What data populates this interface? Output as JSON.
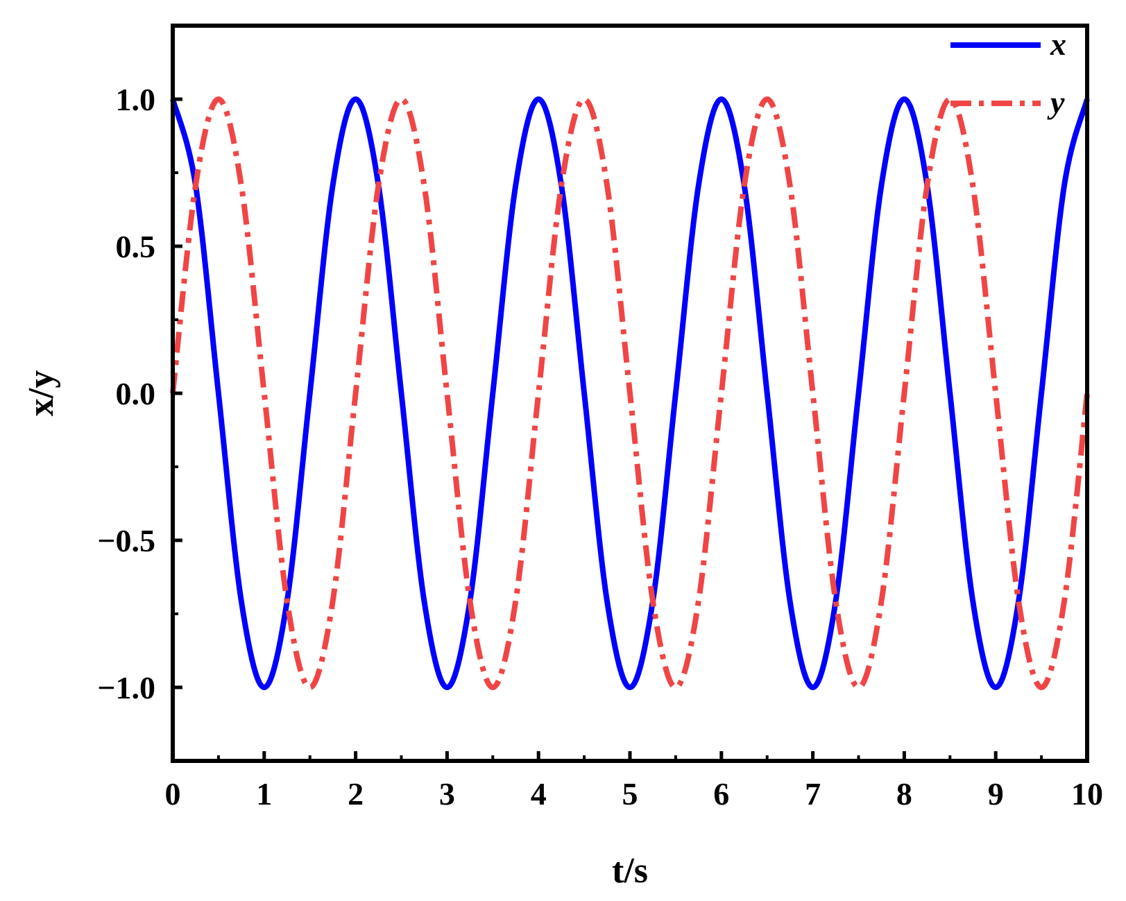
{
  "chart_data": {
    "type": "line",
    "xlabel": "t/s",
    "ylabel": "x/y",
    "xlim": [
      0,
      10
    ],
    "ylim": [
      -1.25,
      1.25
    ],
    "x_ticks": [
      0,
      1,
      2,
      3,
      4,
      5,
      6,
      7,
      8,
      9,
      10
    ],
    "x_tick_labels": [
      "0",
      "1",
      "2",
      "3",
      "4",
      "5",
      "6",
      "7",
      "8",
      "9",
      "10"
    ],
    "y_ticks": [
      -1.0,
      -0.5,
      0.0,
      0.5,
      1.0
    ],
    "y_tick_labels": [
      "−1.0",
      "−0.5",
      "0.0",
      "0.5",
      "1.0"
    ],
    "grid": false,
    "legend_position": "top-right",
    "series": [
      {
        "name": "x",
        "style": "solid",
        "color": "#0000ff",
        "x": [
          0,
          0.25,
          0.5,
          0.75,
          1,
          1.25,
          1.5,
          1.75,
          2,
          2.25,
          2.5,
          2.75,
          3,
          3.25,
          3.5,
          3.75,
          4,
          4.25,
          4.5,
          4.75,
          5,
          5.25,
          5.5,
          5.75,
          6,
          6.25,
          6.5,
          6.75,
          7,
          7.25,
          7.5,
          7.75,
          8,
          8.25,
          8.5,
          8.75,
          9,
          9.25,
          9.5,
          9.75,
          10
        ],
        "values": [
          1,
          0.707,
          0,
          -0.707,
          -1,
          -0.707,
          0,
          0.707,
          1,
          0.707,
          0,
          -0.707,
          -1,
          -0.707,
          0,
          0.707,
          1,
          0.707,
          0,
          -0.707,
          -1,
          -0.707,
          0,
          0.707,
          1,
          0.707,
          0,
          -0.707,
          -1,
          -0.707,
          0,
          0.707,
          1,
          0.707,
          0,
          -0.707,
          -1,
          -0.707,
          0,
          0.707,
          1
        ]
      },
      {
        "name": "y",
        "style": "dash-dot",
        "color": "#f04545",
        "x": [
          0,
          0.25,
          0.5,
          0.75,
          1,
          1.25,
          1.5,
          1.75,
          2,
          2.25,
          2.5,
          2.75,
          3,
          3.25,
          3.5,
          3.75,
          4,
          4.25,
          4.5,
          4.75,
          5,
          5.25,
          5.5,
          5.75,
          6,
          6.25,
          6.5,
          6.75,
          7,
          7.25,
          7.5,
          7.75,
          8,
          8.25,
          8.5,
          8.75,
          9,
          9.25,
          9.5,
          9.75,
          10
        ],
        "values": [
          0,
          0.707,
          1,
          0.707,
          0,
          -0.707,
          -1,
          -0.707,
          0,
          0.707,
          1,
          0.707,
          0,
          -0.707,
          -1,
          -0.707,
          0,
          0.707,
          1,
          0.707,
          0,
          -0.707,
          -1,
          -0.707,
          0,
          0.707,
          1,
          0.707,
          0,
          -0.707,
          -1,
          -0.707,
          0,
          0.707,
          1,
          0.707,
          0,
          -0.707,
          -1,
          -0.707,
          0
        ]
      }
    ]
  }
}
